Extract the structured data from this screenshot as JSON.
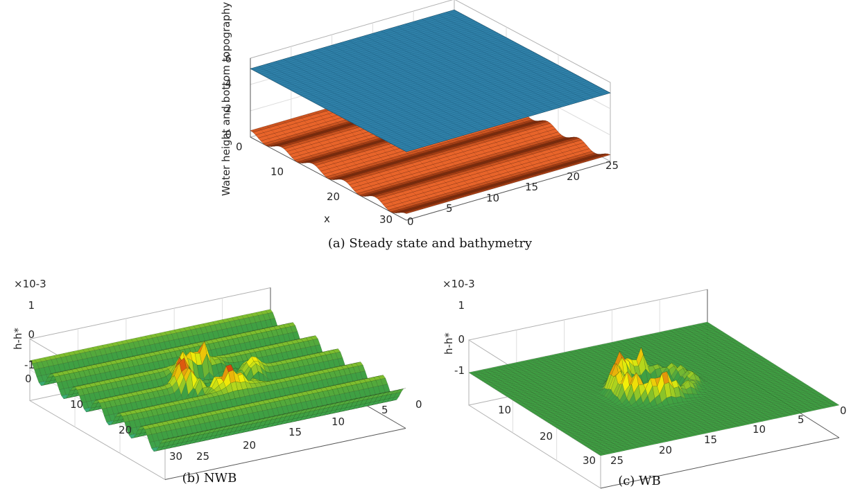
{
  "figure": {
    "panel_a_caption": "(a) Steady state and bathymetry",
    "panel_b_caption": "(b) NWB",
    "panel_c_caption": "(c) WB",
    "colors": {
      "water_surface": "#2f80a8",
      "bottom": "#c8501c",
      "error_green": "#3fa043",
      "error_yellow": "#f2f208",
      "error_red": "#d41e12",
      "error_cyan": "#2ec6e8",
      "axis": "#b0b0b0"
    }
  },
  "chart_data": [
    {
      "id": "a",
      "type": "surface",
      "title": "(a) Steady state and bathymetry",
      "zlabel": "Water height and bottom topography",
      "xlabel": "x",
      "ylabel": "",
      "x_ticks": [
        "0",
        "10",
        "20",
        "30"
      ],
      "y_ticks": [
        "0",
        "5",
        "10",
        "15",
        "20",
        "25"
      ],
      "z_ticks": [
        "0",
        "2",
        "4",
        "6"
      ],
      "xlim": [
        0,
        30
      ],
      "ylim": [
        0,
        25
      ],
      "zlim": [
        0,
        6
      ],
      "grid": true,
      "series": [
        {
          "name": "",
          "kind": "water surface",
          "z_constant": 5.2
        },
        {
          "name": "",
          "kind": "bottom",
          "z_base": 0.0,
          "amplitude": 0.5,
          "ridges_along_x": 5
        }
      ]
    },
    {
      "id": "b",
      "type": "surface",
      "title": "(b) NWB",
      "zlabel": "h-h*",
      "z_multiplier": "×10-3",
      "x_ticks": [
        "0",
        "10",
        "20",
        "30"
      ],
      "y_ticks": [
        "25",
        "20",
        "15",
        "10",
        "5",
        "0"
      ],
      "z_ticks": [
        "-1",
        "0",
        "1"
      ],
      "xlim": [
        0,
        30
      ],
      "ylim": [
        0,
        25
      ],
      "zlim": [
        -0.001,
        0.001
      ],
      "grid": true,
      "features": {
        "ridge_oscillation_amplitude": 0.0003,
        "ridges": 6,
        "ring_peak": 0.001,
        "ring_center": [
          15,
          12.5
        ],
        "ring_radius": 4
      }
    },
    {
      "id": "c",
      "type": "surface",
      "title": "(c) WB",
      "zlabel": "h-h*",
      "z_multiplier": "×10-3",
      "x_ticks": [
        "0",
        "10",
        "20",
        "30"
      ],
      "y_ticks": [
        "25",
        "20",
        "15",
        "10",
        "5",
        "0"
      ],
      "z_ticks": [
        "-1",
        "0",
        "1"
      ],
      "xlim": [
        0,
        30
      ],
      "ylim": [
        0,
        25
      ],
      "zlim": [
        -0.001,
        0.001
      ],
      "grid": true,
      "features": {
        "background": 0.0,
        "ring_peak": 0.001,
        "ring_center": [
          15,
          12.5
        ],
        "ring_radius": 4
      }
    }
  ]
}
